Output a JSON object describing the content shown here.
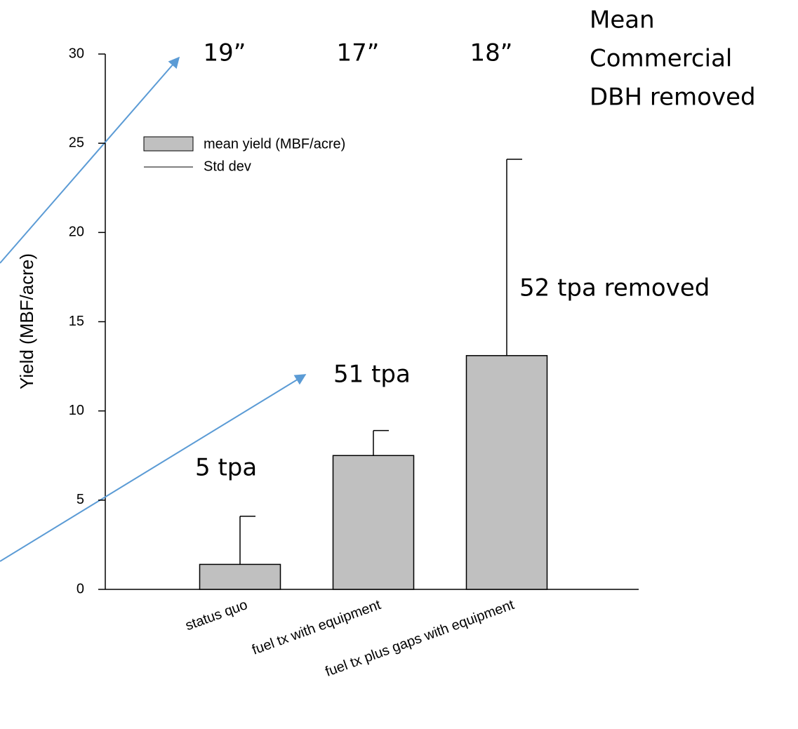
{
  "chart_data": {
    "type": "bar",
    "y_label": "Yield (MBF/acre)",
    "categories": [
      "status quo",
      "fuel tx with equipment",
      "fuel tx plus gaps with equipment"
    ],
    "series": [
      {
        "name": "mean yield (MBF/acre)",
        "color": "#c0c0c0",
        "values": [
          1.4,
          7.5,
          13.1
        ],
        "errors": [
          2.7,
          1.4,
          11.0
        ],
        "error_name": "Std dev"
      }
    ],
    "ylim": [
      0,
      30
    ],
    "yticks": [
      0,
      5,
      10,
      15,
      20,
      25,
      30
    ],
    "dbh_labels": [
      "19”",
      "17”",
      "18”"
    ],
    "dbh_title": [
      "Mean",
      "Commercial",
      "DBH removed"
    ],
    "tpa_labels": [
      "5 tpa",
      "51 tpa",
      "52 tpa removed"
    ]
  }
}
